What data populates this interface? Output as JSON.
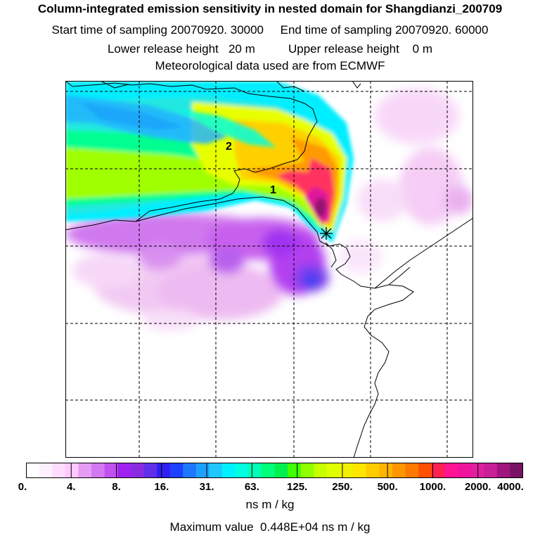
{
  "header": {
    "title": "Column-integrated emission sensitivity in nested domain for Shangdianzi_200709",
    "sampling_line": "Start time of sampling 20070920. 30000     End time of sampling 20070920. 60000",
    "release_line": "Lower release height   20 m          Upper release height    0 m",
    "met_line": "Meteorological data used are from ECMWF"
  },
  "map": {
    "labels": [
      "2",
      "1"
    ],
    "gridline_style": "dashed",
    "coastline_color": "#000000"
  },
  "colorbar": {
    "tick_labels": [
      "0.",
      "4.",
      "8.",
      "16.",
      "31.",
      "63.",
      "125.",
      "250.",
      "500.",
      "1000.",
      "2000.",
      "4000."
    ],
    "colors": [
      "#ffffff",
      "#fff0ff",
      "#ffdcff",
      "#ffc8ff",
      "#e69cf5",
      "#d278f0",
      "#c050f0",
      "#a020f0",
      "#8a2be2",
      "#6030e8",
      "#3020f0",
      "#1e40ff",
      "#1e78ff",
      "#1ea0ff",
      "#1ec8ff",
      "#00f0ff",
      "#00ffe0",
      "#00ffb4",
      "#00ff78",
      "#00f050",
      "#40ff00",
      "#90ff00",
      "#c8ff00",
      "#e0ff00",
      "#f0f000",
      "#ffe600",
      "#ffcc00",
      "#ffb400",
      "#ff9600",
      "#ff7800",
      "#ff5000",
      "#ff2050",
      "#ff1493",
      "#f0149c",
      "#e01ea0",
      "#c81e96",
      "#a0147e",
      "#781464"
    ],
    "units": "ns m / kg"
  },
  "footer": {
    "max_value": "Maximum value  0.448E+04 ns m / kg"
  }
}
